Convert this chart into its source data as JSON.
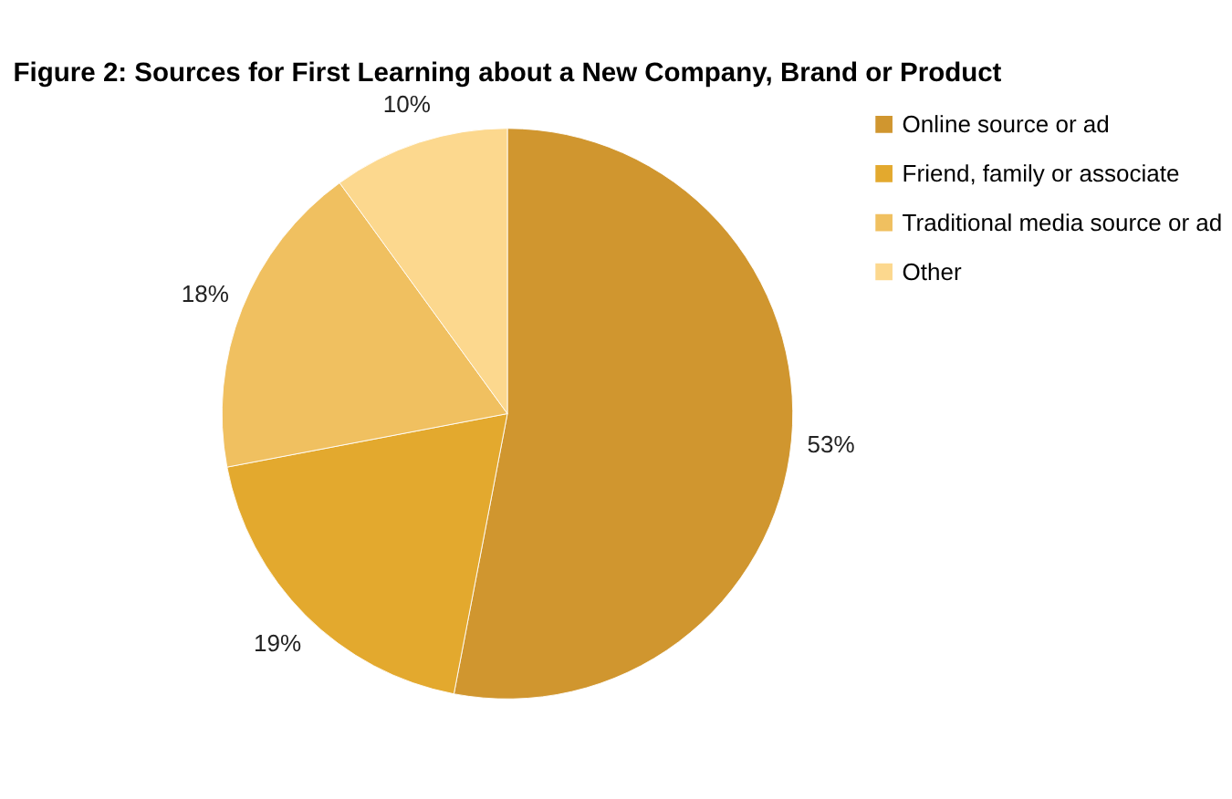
{
  "chart_data": {
    "type": "pie",
    "title": "Figure 2:  Sources for First Learning about a New Company, Brand or Product",
    "categories": [
      "Online source or ad",
      "Friend, family or associate",
      "Traditional media source or ad",
      "Other"
    ],
    "values": [
      53,
      19,
      18,
      10
    ],
    "colors": [
      "#d0962f",
      "#e3a92e",
      "#f0c060",
      "#fcd88e"
    ],
    "value_labels": [
      "53%",
      "19%",
      "18%",
      "10%"
    ],
    "legend": "right"
  }
}
